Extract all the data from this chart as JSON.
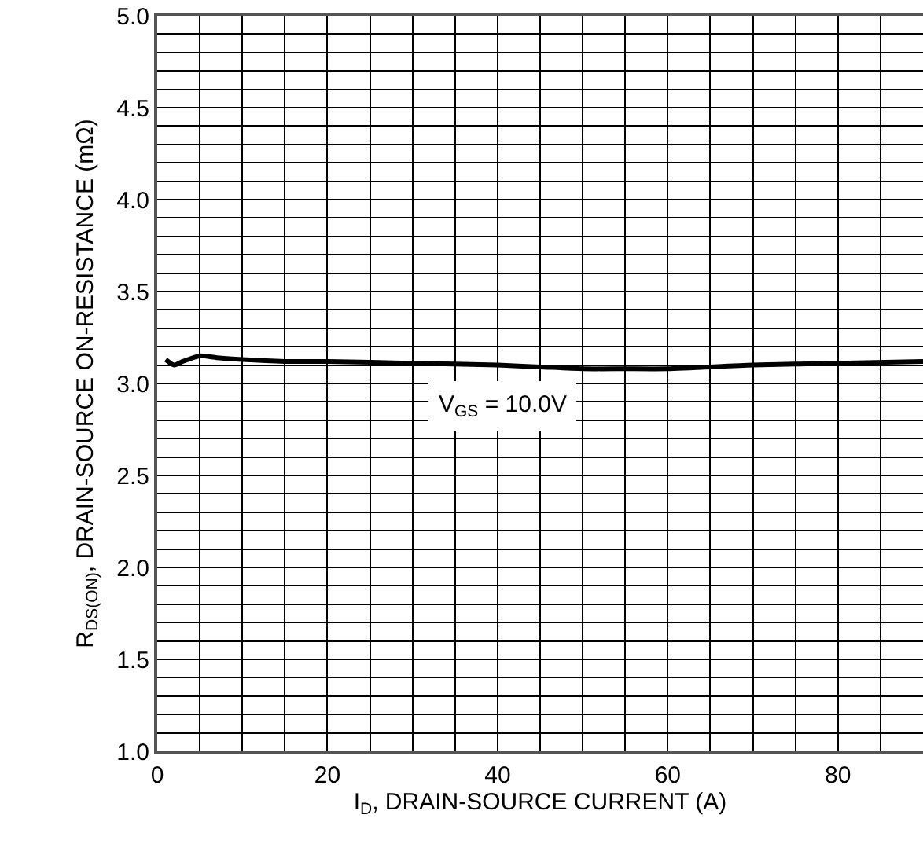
{
  "chart_data": {
    "type": "line",
    "xlabel": "I$_{D}$, DRAIN-SOURCE CURRENT (A)",
    "ylabel": "R$_{DS(ON)}$, DRAIN-SOURCE ON-RESISTANCE (mΩ)",
    "annotations": [
      "V$_{GS}$ = 10.0V"
    ],
    "x": [
      1,
      2,
      3,
      5,
      7,
      10,
      15,
      20,
      30,
      40,
      45,
      50,
      55,
      60,
      70,
      80,
      90
    ],
    "series": [
      {
        "color": "#000000",
        "values": [
          3.13,
          3.1,
          3.12,
          3.15,
          3.14,
          3.13,
          3.12,
          3.12,
          3.11,
          3.1,
          3.09,
          3.08,
          3.08,
          3.08,
          3.1,
          3.11,
          3.12
        ]
      }
    ],
    "xlim": [
      0,
      90
    ],
    "ylim": [
      1,
      5
    ],
    "xticks": [
      0,
      {
        "value": 5,
        "label": null
      },
      {
        "value": 10,
        "label": null
      },
      {
        "value": 15,
        "label": null
      },
      20,
      {
        "value": 25,
        "label": null
      },
      {
        "value": 30,
        "label": null
      },
      {
        "value": 35,
        "label": null
      },
      40,
      {
        "value": 45,
        "label": null
      },
      {
        "value": 50,
        "label": null
      },
      {
        "value": 55,
        "label": null
      },
      60,
      {
        "value": 65,
        "label": null
      },
      {
        "value": 70,
        "label": null
      },
      {
        "value": 75,
        "label": null
      },
      80,
      {
        "value": 85,
        "label": null
      },
      {
        "value": 90,
        "label": null
      }
    ],
    "yticks": [
      {
        "value": 1,
        "label": "1.0"
      },
      {
        "value": 1.1,
        "label": null
      },
      {
        "value": 1.2,
        "label": null
      },
      {
        "value": 1.3,
        "label": null
      },
      {
        "value": 1.4,
        "label": null
      },
      {
        "value": 1.5,
        "label": "1.5"
      },
      {
        "value": 1.6,
        "label": null
      },
      {
        "value": 1.7,
        "label": null
      },
      {
        "value": 1.8,
        "label": null
      },
      {
        "value": 1.9,
        "label": null
      },
      {
        "value": 2,
        "label": "2.0"
      },
      {
        "value": 2.1,
        "label": null
      },
      {
        "value": 2.2,
        "label": null
      },
      {
        "value": 2.3,
        "label": null
      },
      {
        "value": 2.4,
        "label": null
      },
      {
        "value": 2.5,
        "label": "2.5"
      },
      {
        "value": 2.6,
        "label": null
      },
      {
        "value": 2.7,
        "label": null
      },
      {
        "value": 2.8,
        "label": null
      },
      {
        "value": 2.9,
        "label": null
      },
      {
        "value": 3,
        "label": "3.0"
      },
      {
        "value": 3.1,
        "label": null
      },
      {
        "value": 3.2,
        "label": null
      },
      {
        "value": 3.3,
        "label": null
      },
      {
        "value": 3.4,
        "label": null
      },
      {
        "value": 3.5,
        "label": "3.5"
      },
      {
        "value": 3.6,
        "label": null
      },
      {
        "value": 3.7,
        "label": null
      },
      {
        "value": 3.8,
        "label": null
      },
      {
        "value": 3.9,
        "label": null
      },
      {
        "value": 4,
        "label": "4.0"
      },
      {
        "value": 4.1,
        "label": null
      },
      {
        "value": 4.2,
        "label": null
      },
      {
        "value": 4.3,
        "label": null
      },
      {
        "value": 4.4,
        "label": null
      },
      {
        "value": 4.5,
        "label": "4.5"
      },
      {
        "value": 4.6,
        "label": null
      },
      {
        "value": 4.7,
        "label": null
      },
      {
        "value": 4.8,
        "label": null
      },
      {
        "value": 4.9,
        "label": null
      },
      {
        "value": 5,
        "label": "5.0"
      }
    ],
    "grid": true,
    "line_style": "solid",
    "marker": "none"
  }
}
